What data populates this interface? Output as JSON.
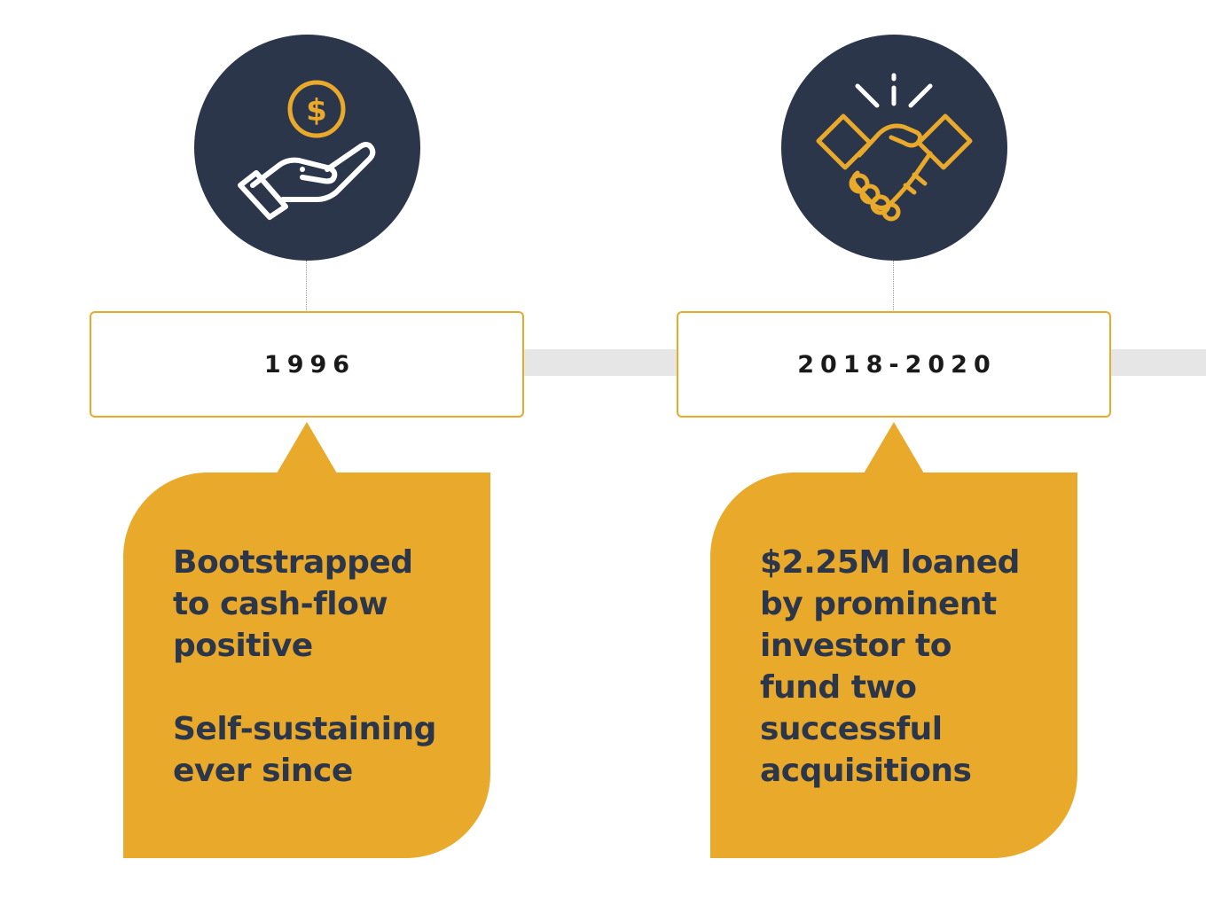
{
  "colors": {
    "accent": "#e9a92a",
    "navy": "#2c364b",
    "track": "#e6e6e6"
  },
  "milestones": [
    {
      "icon": "hand-holding-dollar-icon",
      "year": "1996",
      "paragraphs": [
        "Bootstrapped\nto cash-flow\npositive",
        "Self-sustaining\never since"
      ]
    },
    {
      "icon": "handshake-icon",
      "year": "2018-2020",
      "paragraphs": [
        "$2.25M loaned\nby prominent\ninvestor to\nfund two\nsuccessful\nacquisitions"
      ]
    }
  ]
}
